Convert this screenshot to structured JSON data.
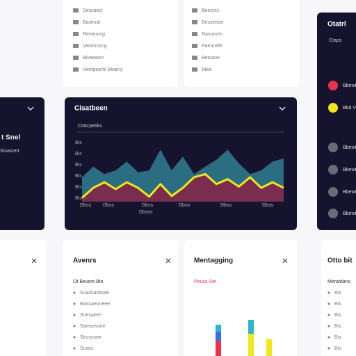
{
  "top_left": {
    "rows": [
      "Sessaed",
      "Bastinal",
      "Rersnoing",
      "Ventocoing",
      "Biveeaion",
      "Hempoemi Bioany"
    ]
  },
  "top_mid": {
    "rows": [
      "Beoxnis",
      "Besseeoe",
      "Rasraneo",
      "Paeunefe",
      "Betoaoe",
      "Biea"
    ]
  },
  "left_panel": {
    "title": "t Snel",
    "subtitle": "Sinastert"
  },
  "chart_panel": {
    "title": "Cisatbeen",
    "subtitle": "Ctatcpetiks",
    "ylabels": [
      "Bis",
      "Bis",
      "Bis",
      "Bis",
      "Bis",
      "Bis"
    ],
    "xlabels": [
      "Dbss",
      "Dbss",
      "Dbss",
      "Dbss",
      "Dbss",
      "Dbss"
    ],
    "footer": "Dbsss",
    "ylim": [
      0,
      100
    ],
    "series": [
      {
        "name": "upper",
        "color": "#2f7f8f",
        "values": [
          39,
          56,
          44,
          50,
          64,
          47,
          50,
          83,
          50,
          72,
          44,
          56,
          67,
          83,
          61,
          44,
          50,
          64,
          69
        ]
      },
      {
        "name": "lower",
        "color": "#f2e61c",
        "fill": "#8a2246",
        "values": [
          6,
          22,
          31,
          20,
          31,
          22,
          8,
          28,
          9,
          22,
          39,
          44,
          28,
          36,
          24,
          39,
          22,
          31,
          22
        ]
      }
    ]
  },
  "right_panel": {
    "title": "Otatrl",
    "subtitle": "Ctaps",
    "rows": [
      {
        "label": "Bbewt",
        "color": "#e8334a"
      },
      {
        "label": "Bbd V",
        "color": "#f2e61c"
      },
      {
        "label": "Bbewt",
        "color": "#6b6b78"
      },
      {
        "label": "Bbewt",
        "color": "#6b6b78"
      },
      {
        "label": "Bbewt",
        "color": "#6b6b78"
      },
      {
        "label": "Bbewt",
        "color": "#6b6b78"
      }
    ]
  },
  "cards": [
    {
      "title": "Avenrs",
      "subtitle": "Ot Bevent Bto",
      "rows": [
        "Suassamisae",
        "Rassaeoneee",
        "Suesaeen",
        "Samsessoe",
        "Seusssoe",
        "Susos"
      ]
    },
    {
      "title": "Mentagging",
      "subtitle": "Peuss Ste"
    },
    {
      "title": "Otto bit",
      "subtitle": "Meratdans",
      "rows": [
        "Bis",
        "Bis",
        "Bis",
        "Bis",
        "Bis",
        "Bis"
      ]
    }
  ]
}
